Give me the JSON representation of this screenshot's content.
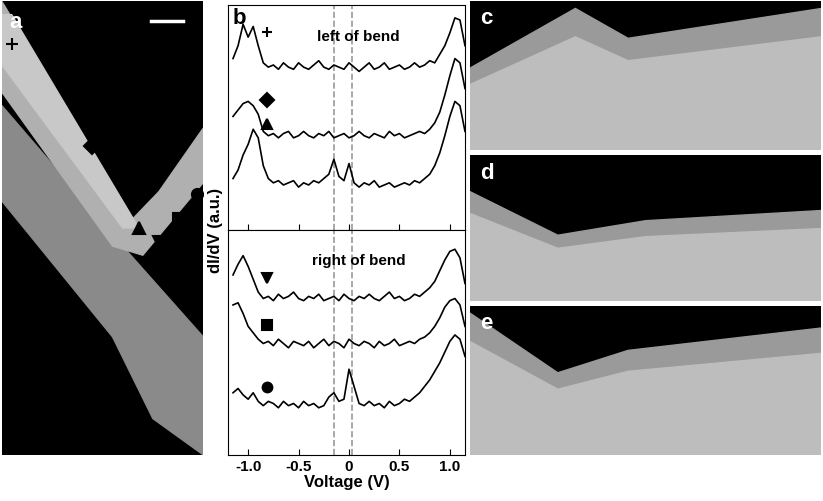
{
  "panel_labels": [
    "a",
    "b",
    "c",
    "d",
    "e"
  ],
  "ylabel": "dI/dV (a.u.)",
  "chart_data": [
    {
      "type": "line",
      "title": "left of bend",
      "x": [
        -1.15,
        -1.1,
        -1.05,
        -1.0,
        -0.95,
        -0.9,
        -0.85,
        -0.8,
        -0.75,
        -0.7,
        -0.65,
        -0.6,
        -0.55,
        -0.5,
        -0.45,
        -0.4,
        -0.35,
        -0.3,
        -0.25,
        -0.2,
        -0.15,
        -0.1,
        -0.05,
        0,
        0.05,
        0.1,
        0.15,
        0.2,
        0.25,
        0.3,
        0.35,
        0.4,
        0.45,
        0.5,
        0.55,
        0.6,
        0.65,
        0.7,
        0.75,
        0.8,
        0.85,
        0.9,
        0.95,
        1.0,
        1.05,
        1.1,
        1.15
      ],
      "series": [
        {
          "color": "#000000",
          "marker": "plus",
          "values": [
            8.0,
            8.6,
            9.6,
            9.0,
            9.5,
            8.6,
            7.8,
            7.6,
            7.7,
            7.5,
            7.8,
            7.6,
            7.5,
            7.8,
            7.6,
            7.5,
            7.7,
            7.9,
            7.6,
            7.5,
            7.7,
            7.6,
            7.5,
            7.8,
            7.6,
            7.4,
            7.6,
            7.8,
            7.5,
            7.6,
            7.8,
            7.5,
            7.6,
            7.7,
            7.5,
            7.6,
            7.8,
            7.6,
            7.7,
            7.9,
            7.8,
            8.2,
            8.6,
            9.2,
            9.9,
            9.8,
            8.6
          ]
        },
        {
          "color": "#000000",
          "marker": "diamond",
          "values": [
            5.3,
            5.6,
            5.9,
            6.0,
            5.8,
            5.4,
            4.6,
            4.4,
            4.5,
            4.3,
            4.5,
            4.6,
            4.3,
            4.4,
            4.6,
            4.4,
            4.3,
            4.5,
            4.4,
            4.6,
            4.3,
            4.4,
            4.5,
            4.3,
            4.4,
            4.6,
            4.4,
            4.3,
            4.5,
            4.4,
            4.3,
            4.6,
            4.4,
            4.5,
            4.3,
            4.4,
            4.5,
            4.6,
            4.5,
            4.7,
            5.0,
            5.5,
            6.3,
            7.2,
            8.0,
            7.8,
            6.6
          ]
        },
        {
          "color": "#000000",
          "marker": "triangle_up",
          "values": [
            2.4,
            2.8,
            3.5,
            4.0,
            4.7,
            4.3,
            3.0,
            2.4,
            2.2,
            2.3,
            2.1,
            2.2,
            2.3,
            2.0,
            2.2,
            2.1,
            2.3,
            2.2,
            2.4,
            2.6,
            3.3,
            2.5,
            2.3,
            3.1,
            2.2,
            2.0,
            2.2,
            2.1,
            2.3,
            2.0,
            2.1,
            2.2,
            2.0,
            2.1,
            2.2,
            2.1,
            2.3,
            2.2,
            2.4,
            2.6,
            3.0,
            3.6,
            4.4,
            5.3,
            6.0,
            5.8,
            4.6
          ]
        }
      ],
      "vlines": [
        -0.15,
        0.03
      ],
      "xlim": [
        -1.2,
        1.15
      ],
      "ylim": [
        0,
        10.5
      ],
      "xticks": [
        {
          "value": -1.0,
          "label": "-1.0"
        },
        -0.5,
        0,
        0.5,
        {
          "value": 1.0,
          "label": "1.0"
        }
      ],
      "tick_labels": false
    },
    {
      "type": "line",
      "title": "right of bend",
      "xlabel": "Voltage (V)",
      "x": [
        -1.15,
        -1.1,
        -1.05,
        -1.0,
        -0.95,
        -0.9,
        -0.85,
        -0.8,
        -0.75,
        -0.7,
        -0.65,
        -0.6,
        -0.55,
        -0.5,
        -0.45,
        -0.4,
        -0.35,
        -0.3,
        -0.25,
        -0.2,
        -0.15,
        -0.1,
        -0.05,
        0,
        0.05,
        0.1,
        0.15,
        0.2,
        0.25,
        0.3,
        0.35,
        0.4,
        0.45,
        0.5,
        0.55,
        0.6,
        0.65,
        0.7,
        0.75,
        0.8,
        0.85,
        0.9,
        0.95,
        1.0,
        1.05,
        1.1,
        1.15
      ],
      "series": [
        {
          "color": "#000000",
          "marker": "triangle_down",
          "values": [
            8.4,
            8.9,
            9.3,
            8.8,
            8.2,
            7.6,
            7.3,
            7.4,
            7.2,
            7.5,
            7.3,
            7.4,
            7.6,
            7.3,
            7.2,
            7.4,
            7.3,
            7.5,
            7.2,
            7.3,
            7.4,
            7.2,
            7.5,
            7.3,
            7.2,
            7.4,
            7.3,
            7.5,
            7.3,
            7.2,
            7.4,
            7.6,
            7.3,
            7.4,
            7.2,
            7.3,
            7.5,
            7.4,
            7.6,
            7.8,
            8.1,
            8.6,
            9.1,
            9.5,
            9.6,
            9.2,
            8.0
          ]
        },
        {
          "color": "#000000",
          "marker": "square",
          "values": [
            7.0,
            7.1,
            6.6,
            6.0,
            5.7,
            5.4,
            5.2,
            5.3,
            5.1,
            5.4,
            5.2,
            5.0,
            5.3,
            5.2,
            5.1,
            5.3,
            5.0,
            5.2,
            5.4,
            5.1,
            5.3,
            5.2,
            5.0,
            5.4,
            5.2,
            5.1,
            5.3,
            5.2,
            5.0,
            5.3,
            5.1,
            5.2,
            5.4,
            5.1,
            5.2,
            5.3,
            5.2,
            5.4,
            5.5,
            5.7,
            6.0,
            6.4,
            6.9,
            7.2,
            7.3,
            7.0,
            6.0
          ]
        },
        {
          "color": "#000000",
          "marker": "circle",
          "values": [
            2.9,
            3.1,
            2.8,
            2.6,
            2.9,
            2.5,
            2.3,
            2.5,
            2.4,
            2.2,
            2.5,
            2.3,
            2.4,
            2.2,
            2.5,
            2.3,
            2.4,
            2.2,
            2.3,
            2.7,
            2.9,
            2.5,
            2.6,
            4.0,
            3.2,
            2.4,
            2.3,
            2.5,
            2.3,
            2.4,
            2.2,
            2.5,
            2.3,
            2.4,
            2.6,
            2.5,
            2.7,
            2.9,
            3.2,
            3.5,
            3.9,
            4.3,
            4.8,
            5.3,
            5.6,
            5.4,
            4.6
          ]
        }
      ],
      "vlines": [
        -0.15,
        0.03
      ],
      "xlim": [
        -1.2,
        1.15
      ],
      "ylim": [
        0,
        10.5
      ],
      "xticks": [
        {
          "value": -1.0,
          "label": "-1.0"
        },
        -0.5,
        0,
        0.5,
        {
          "value": 1.0,
          "label": "1.0"
        }
      ],
      "tick_labels": "x"
    }
  ]
}
